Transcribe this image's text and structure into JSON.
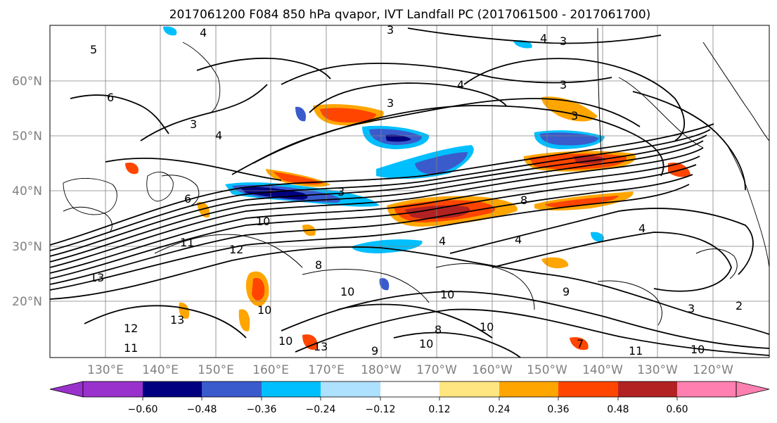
{
  "title": "2017061200 F084 850 hPa qvapor, IVT Landfall PC (2017061500 - 2017061700)",
  "map": {
    "lat_labels": [
      "60°N",
      "50°N",
      "40°N",
      "30°N",
      "20°N"
    ],
    "lon_labels": [
      "130°E",
      "140°E",
      "150°E",
      "160°E",
      "170°E",
      "180°W",
      "170°W",
      "160°W",
      "150°W",
      "140°W",
      "130°W",
      "120°W"
    ],
    "contour_labels": [
      "4",
      "3",
      "5",
      "4",
      "3",
      "6",
      "3",
      "4",
      "3",
      "3",
      "4",
      "3",
      "6",
      "3",
      "10",
      "8",
      "4",
      "4",
      "11",
      "12",
      "4",
      "13",
      "8",
      "10",
      "10",
      "9",
      "10",
      "13",
      "12",
      "11",
      "10",
      "13",
      "9",
      "10",
      "8",
      "10",
      "7",
      "11",
      "10",
      "3",
      "2"
    ],
    "colors": {
      "gridline": "#808080",
      "contour": "#000000",
      "coastline": "#000000"
    }
  },
  "colorbar": {
    "tick_labels": [
      "−0.60",
      "−0.48",
      "−0.36",
      "−0.24",
      "−0.12",
      "0.12",
      "0.24",
      "0.36",
      "0.48",
      "0.60"
    ],
    "colors": [
      "#9932cc",
      "#000080",
      "#3a5bcc",
      "#00bfff",
      "#aee0ff",
      "#ffffff",
      "#ffe680",
      "#ffa500",
      "#ff4500",
      "#b22222",
      "#ff80b0"
    ],
    "extend": "both"
  }
}
